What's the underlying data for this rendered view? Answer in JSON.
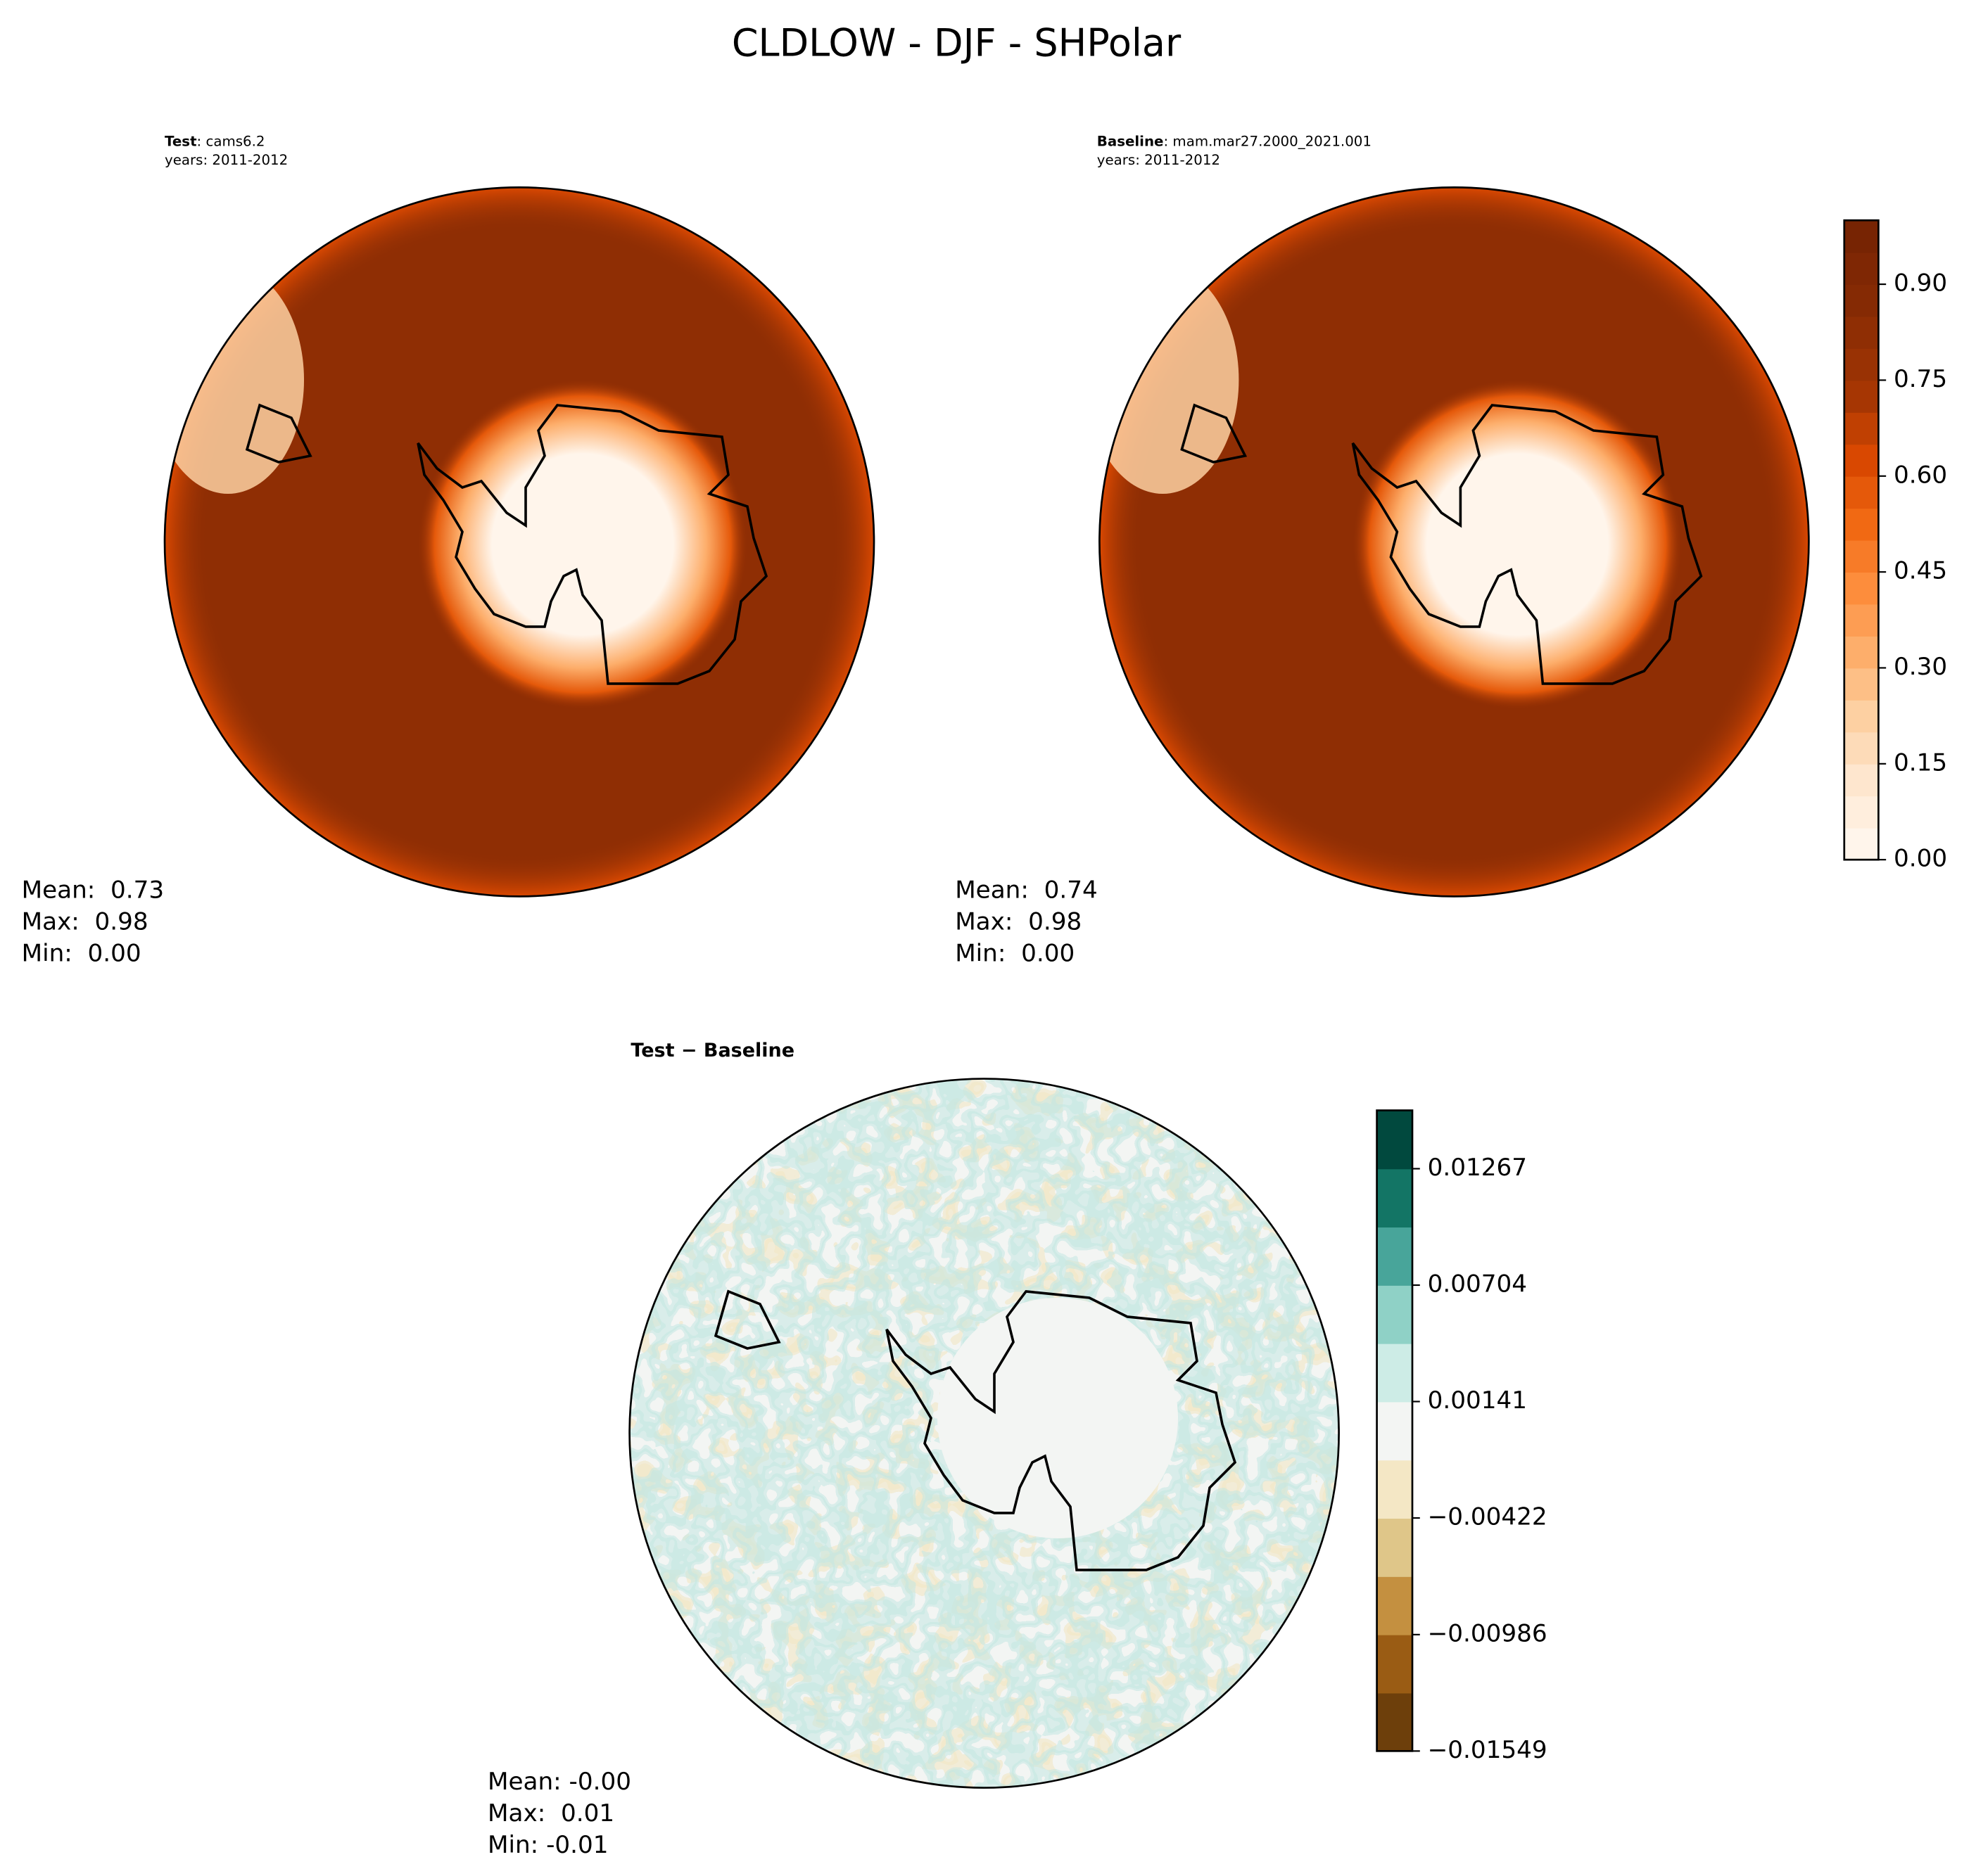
{
  "title": "CLDLOW - DJF - SHPolar",
  "panels": [
    {
      "case_label": "Test",
      "case_name": ": cams6.2",
      "years": "years: 2011-2012",
      "stats": [
        "Mean:  0.73",
        "Max:  0.98",
        "Min:  0.00"
      ]
    },
    {
      "case_label": "Baseline",
      "case_name": ": mam.mar27.2000_2021.001",
      "years": "years: 2011-2012",
      "stats": [
        "Mean:  0.74",
        "Max:  0.98",
        "Min:  0.00"
      ]
    },
    {
      "case_label": "Test − Baseline",
      "stats": [
        "Mean: -0.00",
        "Max:  0.01",
        "Min: -0.01"
      ]
    }
  ],
  "colorbars": [
    {
      "clim": [
        0,
        1.0
      ],
      "ticks": [
        {
          "value": 0,
          "label": "0.00"
        },
        {
          "value": 0.15,
          "label": "0.15"
        },
        {
          "value": 0.3,
          "label": "0.30"
        },
        {
          "value": 0.45,
          "label": "0.45"
        },
        {
          "value": 0.6,
          "label": "0.60"
        },
        {
          "value": 0.75,
          "label": "0.75"
        },
        {
          "value": 0.9,
          "label": "0.90"
        }
      ],
      "colors": [
        "#fff5eb",
        "#ffeedd",
        "#fee6ce",
        "#fddbb8",
        "#fdd0a2",
        "#fdbf86",
        "#fdae6b",
        "#fd9d53",
        "#fd8d3c",
        "#f77b28",
        "#f16913",
        "#e5590a",
        "#d94801",
        "#c04002",
        "#a63603",
        "#993204",
        "#8f2e04",
        "#852a04",
        "#7f2704",
        "#772403"
      ]
    },
    {
      "clim": [
        -0.01549,
        0.01549
      ],
      "ticks": [
        {
          "value": -0.01549,
          "label": "−0.01549"
        },
        {
          "value": -0.00986,
          "label": "−0.00986"
        },
        {
          "value": -0.00422,
          "label": "−0.00422"
        },
        {
          "value": 0.00141,
          "label": "0.00141"
        },
        {
          "value": 0.00704,
          "label": "0.00704"
        },
        {
          "value": 0.01267,
          "label": "0.01267"
        }
      ],
      "colors": [
        "#6d3f0b",
        "#9a5c14",
        "#c49040",
        "#dfc689",
        "#f4e7c5",
        "#f3f5f3",
        "#cdece6",
        "#8fd1c6",
        "#48a59a",
        "#137565",
        "#01493e"
      ]
    }
  ]
}
